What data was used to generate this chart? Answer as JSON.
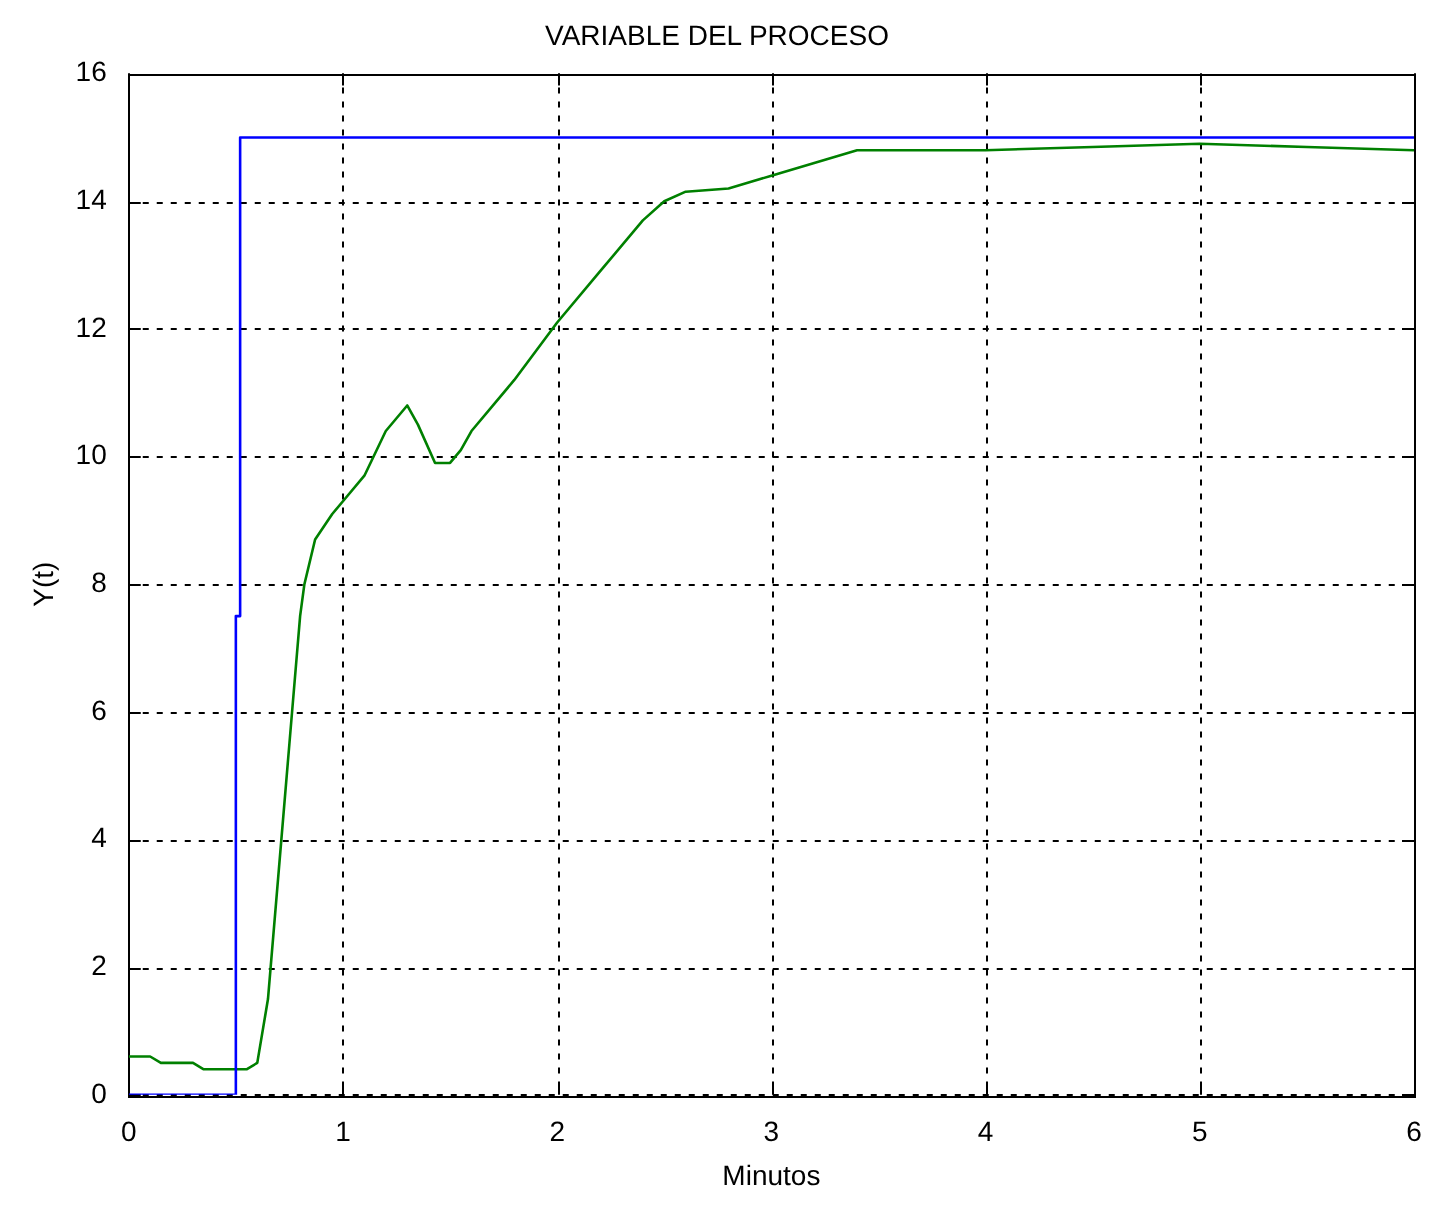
{
  "chart_data": {
    "type": "line",
    "title": "VARIABLE DEL PROCESO",
    "xlabel": "Minutos",
    "ylabel": "Y(t)",
    "xlim": [
      0,
      6
    ],
    "xticks": [
      0,
      1,
      2,
      3,
      4,
      5,
      6
    ],
    "ylim": [
      0,
      16
    ],
    "yticks": [
      0,
      2,
      4,
      6,
      8,
      10,
      12,
      14,
      16
    ],
    "grid": true,
    "legend": false,
    "marker": "none",
    "line_style": "solid",
    "series": [
      {
        "color": "#0000ff",
        "x": [
          0,
          0.5,
          0.5,
          0.52,
          0.52,
          6
        ],
        "values": [
          0,
          0,
          7.5,
          7.5,
          15,
          15
        ]
      },
      {
        "color": "#008000",
        "x": [
          0,
          0.1,
          0.15,
          0.3,
          0.35,
          0.55,
          0.6,
          0.65,
          0.7,
          0.75,
          0.8,
          0.82,
          0.87,
          0.95,
          1.0,
          1.1,
          1.2,
          1.3,
          1.35,
          1.43,
          1.5,
          1.55,
          1.6,
          1.8,
          2.0,
          2.2,
          2.4,
          2.5,
          2.6,
          2.8,
          3.0,
          3.2,
          3.4,
          4.0,
          4.5,
          5.0,
          5.5,
          6.0
        ],
        "values": [
          0.6,
          0.6,
          0.5,
          0.5,
          0.4,
          0.4,
          0.5,
          1.5,
          3.5,
          5.5,
          7.5,
          8.0,
          8.7,
          9.1,
          9.3,
          9.7,
          10.4,
          10.8,
          10.5,
          9.9,
          9.9,
          10.1,
          10.4,
          11.2,
          12.1,
          12.9,
          13.7,
          14.0,
          14.15,
          14.2,
          14.4,
          14.6,
          14.8,
          14.8,
          14.85,
          14.9,
          14.85,
          14.8
        ]
      }
    ]
  }
}
